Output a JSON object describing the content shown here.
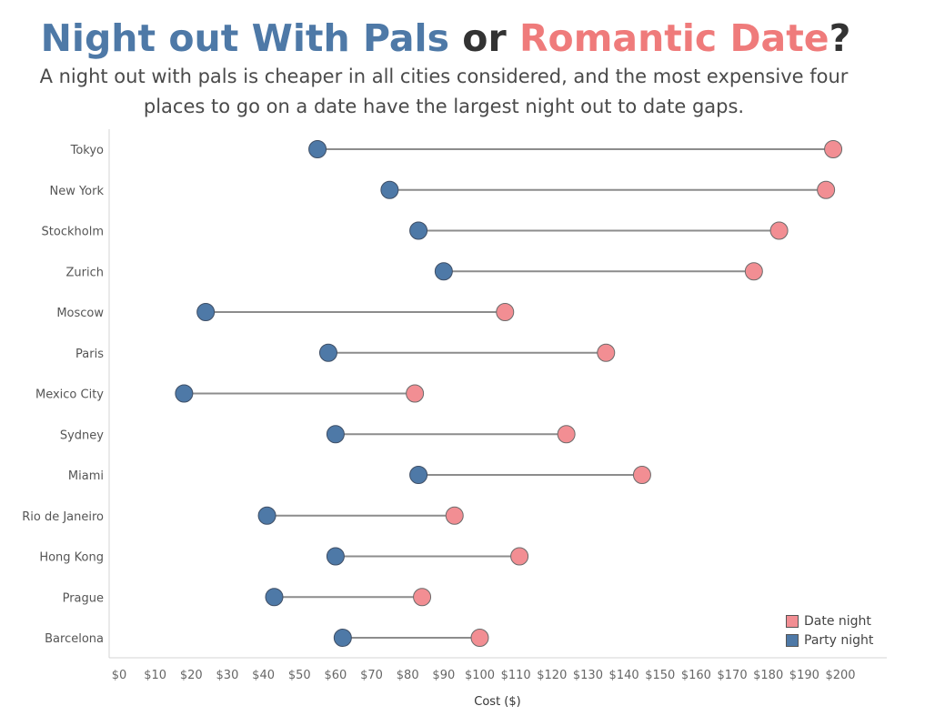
{
  "title": {
    "part1": "Night out With Pals",
    "part2": " or ",
    "part3": "Romantic Date",
    "part4": "?"
  },
  "subtitle": {
    "line1": "A night out with pals is cheaper in all cities considered, and the most expensive four",
    "line2": "places to go on a date have the largest night out to date gaps."
  },
  "colors": {
    "party": "#4e79a7",
    "date": "#f28e93",
    "title_blue": "#4e79a7",
    "title_red": "#ef7b7b",
    "title_dark": "#333333"
  },
  "legend": {
    "date_label": "Date night",
    "party_label": "Party night"
  },
  "chart_data": {
    "type": "dumbbell",
    "xlabel": "Cost ($)",
    "xlim": [
      0,
      210
    ],
    "x_ticks": [
      "$0",
      "$10",
      "$20",
      "$30",
      "$40",
      "$50",
      "$60",
      "$70",
      "$80",
      "$90",
      "$100",
      "$110",
      "$120",
      "$130",
      "$140",
      "$150",
      "$160",
      "$170",
      "$180",
      "$190",
      "$200"
    ],
    "grid": false,
    "legend_position": "bottom-right",
    "categories": [
      "Tokyo",
      "New York",
      "Stockholm",
      "Zurich",
      "Moscow",
      "Paris",
      "Mexico City",
      "Sydney",
      "Miami",
      "Rio de Janeiro",
      "Hong Kong",
      "Prague",
      "Barcelona"
    ],
    "series": [
      {
        "name": "Party night",
        "values": [
          55,
          75,
          83,
          90,
          24,
          58,
          18,
          60,
          83,
          41,
          60,
          43,
          62
        ]
      },
      {
        "name": "Date night",
        "values": [
          198,
          196,
          183,
          176,
          107,
          135,
          82,
          124,
          145,
          93,
          111,
          84,
          100
        ]
      }
    ]
  }
}
